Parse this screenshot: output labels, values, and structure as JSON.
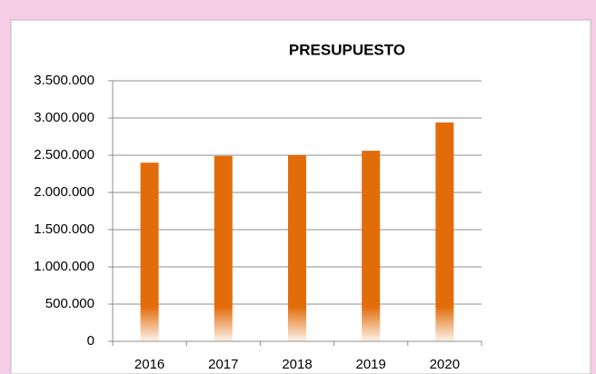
{
  "chart_data": {
    "type": "bar",
    "title": "PRESUPUESTO",
    "categories": [
      "2016",
      "2017",
      "2018",
      "2019",
      "2020"
    ],
    "values": [
      2400000,
      2490000,
      2500000,
      2560000,
      2940000
    ],
    "color": "#e36c0a",
    "ylim": [
      0,
      3500000
    ],
    "yticks": [
      0,
      {
        "value": 500000,
        "label": "500.000"
      },
      {
        "value": 1000000,
        "label": "1.000.000"
      },
      {
        "value": 1500000,
        "label": "1.500.000"
      },
      {
        "value": 2000000,
        "label": "2.000.000"
      },
      {
        "value": 2500000,
        "label": "2.500.000"
      },
      {
        "value": 3000000,
        "label": "3.000.000"
      },
      {
        "value": 3500000,
        "label": "3.500.000"
      }
    ],
    "grid": true
  }
}
